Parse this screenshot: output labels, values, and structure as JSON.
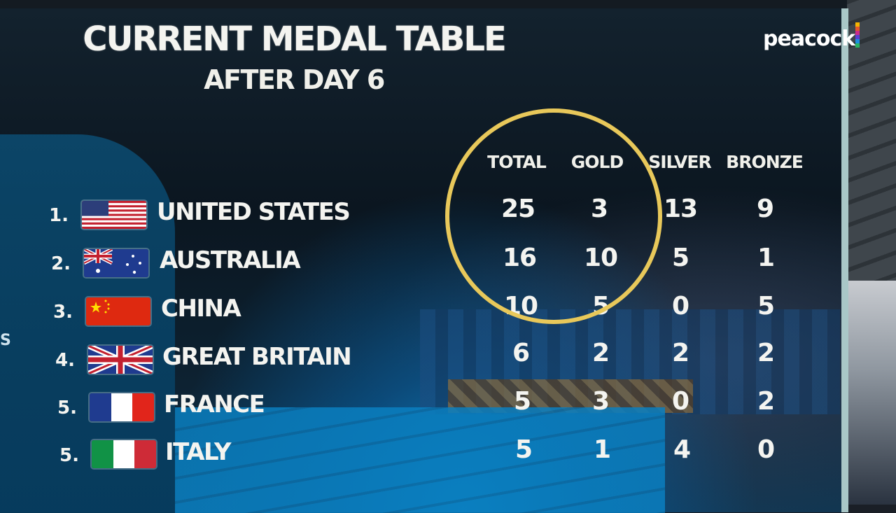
{
  "title": "CURRENT MEDAL TABLE",
  "subtitle": "AFTER DAY 6",
  "logo": "peacock",
  "edge_text": "S",
  "headers": {
    "total": "TOTAL",
    "gold": "GOLD",
    "silver": "SILVER",
    "bronze": "BRONZE"
  },
  "rows": [
    {
      "rank": "1.",
      "country": "UNITED STATES",
      "flag": "usa-flag",
      "total": "25",
      "gold": "3",
      "silver": "13",
      "bronze": "9"
    },
    {
      "rank": "2.",
      "country": "AUSTRALIA",
      "flag": "australia-flag",
      "total": "16",
      "gold": "10",
      "silver": "5",
      "bronze": "1"
    },
    {
      "rank": "3.",
      "country": "CHINA",
      "flag": "china-flag",
      "total": "10",
      "gold": "5",
      "silver": "0",
      "bronze": "5"
    },
    {
      "rank": "4.",
      "country": "GREAT BRITAIN",
      "flag": "uk-flag",
      "total": "6",
      "gold": "2",
      "silver": "2",
      "bronze": "2"
    },
    {
      "rank": "5.",
      "country": "FRANCE",
      "flag": "france-flag",
      "total": "5",
      "gold": "3",
      "silver": "0",
      "bronze": "2"
    },
    {
      "rank": "5.",
      "country": "ITALY",
      "flag": "italy-flag",
      "total": "5",
      "gold": "1",
      "silver": "4",
      "bronze": "0"
    }
  ],
  "colors": {
    "highlight_circle": "#e8c85a",
    "text": "#f4f4f0"
  }
}
